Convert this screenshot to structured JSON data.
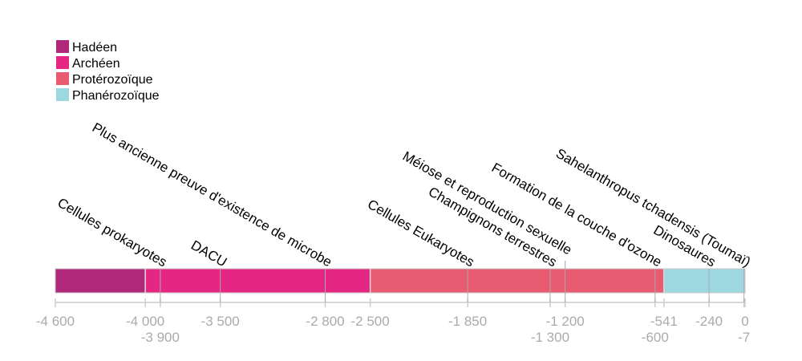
{
  "chart_data": {
    "type": "timeline",
    "xlim": [
      -4600,
      0
    ],
    "eras": [
      {
        "name": "Hadéen",
        "start": -4600,
        "end": -4000,
        "color": "#b0287a"
      },
      {
        "name": "Archéen",
        "start": -4000,
        "end": -2500,
        "color": "#e52683"
      },
      {
        "name": "Protérozoïque",
        "start": -2500,
        "end": -541,
        "color": "#e95b70"
      },
      {
        "name": "Phanérozoïque",
        "start": -541,
        "end": 0,
        "color": "#9dd8e0"
      }
    ],
    "events": [
      {
        "label": "Cellules prokaryotes",
        "x": -3900
      },
      {
        "label": "DACU",
        "x": -3500
      },
      {
        "label": "Plus ancienne preuve d'existence de microbe",
        "x": -2800
      },
      {
        "label": "Cellules Eukaryotes",
        "x": -1850
      },
      {
        "label": "Champignons terrestres",
        "x": -1300
      },
      {
        "label": "Méiose et reproduction sexuelle",
        "x": -1200
      },
      {
        "label": "Formation de la couche d'ozone",
        "x": -600
      },
      {
        "label": "Dinosaures",
        "x": -240
      },
      {
        "label": "Sahelanthropus tchadensis (Toumaï)",
        "x": -7
      }
    ],
    "ticks": [
      {
        "value": -4600,
        "label": "-4 600",
        "row": 0
      },
      {
        "value": -4000,
        "label": "-4 000",
        "row": 0
      },
      {
        "value": -3900,
        "label": "-3 900",
        "row": 1
      },
      {
        "value": -3500,
        "label": "-3 500",
        "row": 0
      },
      {
        "value": -2800,
        "label": "-2 800",
        "row": 0
      },
      {
        "value": -2500,
        "label": "-2 500",
        "row": 0
      },
      {
        "value": -1850,
        "label": "-1 850",
        "row": 0
      },
      {
        "value": -1300,
        "label": "-1 300",
        "row": 1
      },
      {
        "value": -1200,
        "label": "-1 200",
        "row": 0
      },
      {
        "value": -600,
        "label": "-600",
        "row": 1
      },
      {
        "value": -541,
        "label": "-541",
        "row": 0
      },
      {
        "value": -240,
        "label": "-240",
        "row": 0
      },
      {
        "value": -7,
        "label": "-7",
        "row": 1
      },
      {
        "value": 0,
        "label": "0",
        "row": 0
      }
    ],
    "legend": {
      "position": "top-left"
    }
  }
}
